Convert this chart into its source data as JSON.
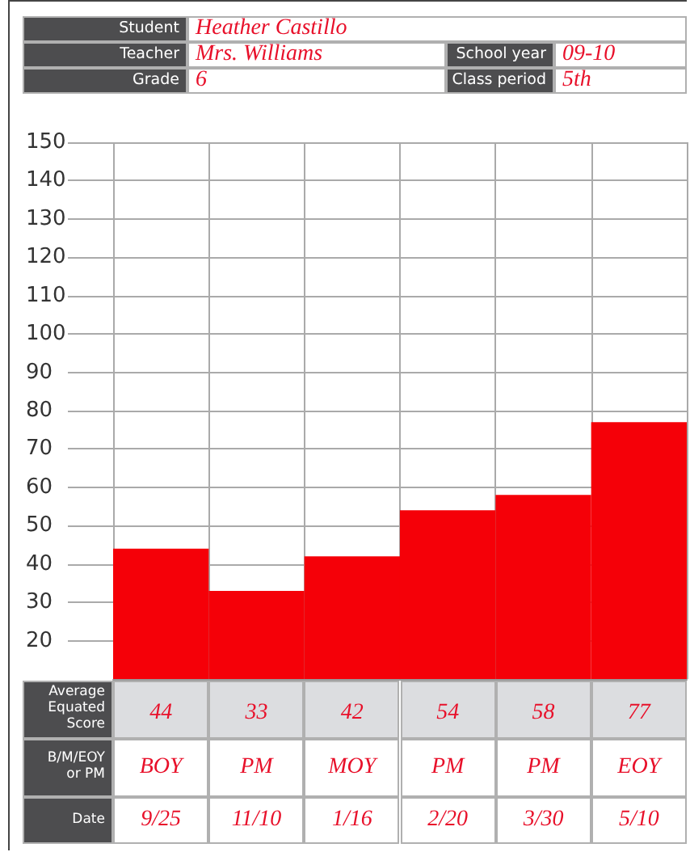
{
  "chart_data": {
    "type": "bar",
    "categories": [
      "9/25",
      "11/10",
      "1/16",
      "2/20",
      "3/30",
      "5/10"
    ],
    "values": [
      44,
      33,
      42,
      54,
      58,
      77
    ],
    "color": "#f50008",
    "data_labels": true,
    "ylim": [
      10,
      150
    ],
    "yticks": [
      20,
      30,
      40,
      50,
      60,
      70,
      80,
      90,
      100,
      110,
      120,
      130,
      140,
      150
    ],
    "grid": true,
    "annotations": [
      "Student",
      "Heather Castillo",
      "Teacher",
      "Mrs. Williams",
      "Grade",
      "6",
      "School year",
      "09-10",
      "Class period",
      "5th",
      "Average Equated Score",
      "B/M/EOY or PM",
      "Date",
      "BOY",
      "PM",
      "MOY",
      "PM",
      "PM",
      "EOY"
    ]
  }
}
